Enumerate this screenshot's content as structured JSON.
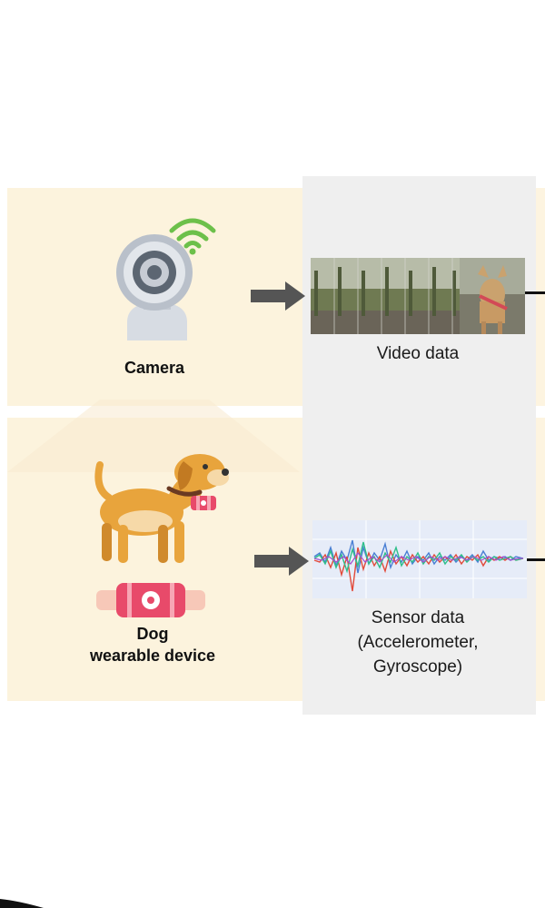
{
  "camera_section": {
    "label": "Camera",
    "output_label": "Video data"
  },
  "dog_section": {
    "label_line1": "Dog",
    "label_line2": "wearable device",
    "output_label_line1": "Sensor data",
    "output_label_line2": "(Accelerometer,",
    "output_label_line3": "Gyroscope)"
  },
  "colors": {
    "panel_cream": "#fcf3dd",
    "panel_gray": "#efefef",
    "arrow": "#555555",
    "wifi": "#6cc04a",
    "dog_fur": "#e8a43c",
    "device_pink": "#e84a6a"
  },
  "icons": [
    "camera-icon",
    "wifi-icon",
    "dog-icon",
    "wearable-device-icon",
    "arrow-right-icon",
    "video-frames",
    "sensor-waveform"
  ]
}
